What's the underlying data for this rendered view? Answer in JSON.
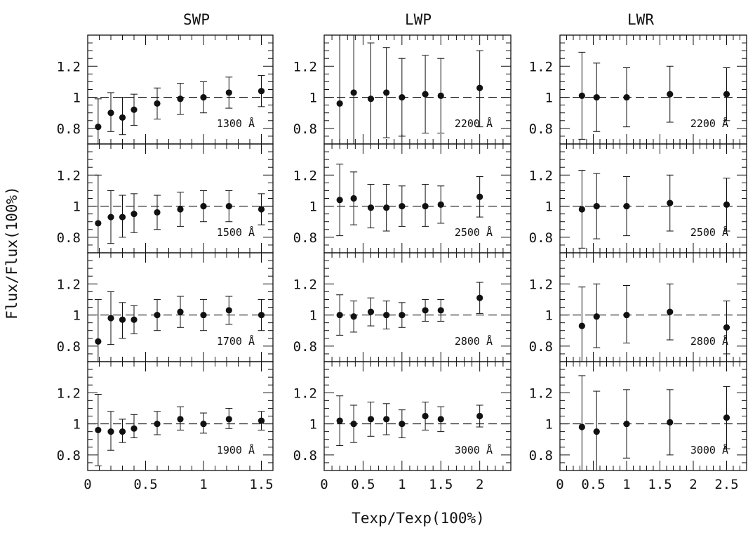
{
  "figure": {
    "column_titles": [
      "SWP",
      "LWP",
      "LWR"
    ],
    "xlabel": "Texp/Texp(100%)",
    "ylabel": "Flux/Flux(100%)"
  },
  "chart_data": [
    {
      "type": "scatter",
      "panel": "SWP 1300 Å",
      "camera": "SWP",
      "wavelength_label": "1300 Å",
      "x": [
        0.09,
        0.2,
        0.3,
        0.4,
        0.6,
        0.8,
        1.0,
        1.22,
        1.5
      ],
      "y": [
        0.81,
        0.9,
        0.87,
        0.92,
        0.96,
        0.99,
        1.0,
        1.03,
        1.04
      ],
      "err_low": [
        0.7,
        0.78,
        0.76,
        0.82,
        0.86,
        0.89,
        0.9,
        0.93,
        0.94
      ],
      "err_high": [
        0.99,
        1.03,
        1.0,
        1.02,
        1.06,
        1.09,
        1.1,
        1.13,
        1.14
      ],
      "xlim": [
        0,
        1.6
      ],
      "ylim": [
        0.7,
        1.4
      ],
      "reference_line": 1.0
    },
    {
      "type": "scatter",
      "panel": "SWP 1500 Å",
      "camera": "SWP",
      "wavelength_label": "1500 Å",
      "x": [
        0.09,
        0.2,
        0.3,
        0.4,
        0.6,
        0.8,
        1.0,
        1.22,
        1.5
      ],
      "y": [
        0.89,
        0.93,
        0.93,
        0.95,
        0.96,
        0.98,
        1.0,
        1.0,
        0.98
      ],
      "err_low": [
        0.7,
        0.76,
        0.8,
        0.83,
        0.85,
        0.87,
        0.9,
        0.9,
        0.88
      ],
      "err_high": [
        1.2,
        1.1,
        1.07,
        1.08,
        1.07,
        1.09,
        1.1,
        1.1,
        1.08
      ],
      "xlim": [
        0,
        1.6
      ],
      "ylim": [
        0.7,
        1.4
      ],
      "reference_line": 1.0
    },
    {
      "type": "scatter",
      "panel": "SWP 1700 Å",
      "camera": "SWP",
      "wavelength_label": "1700 Å",
      "x": [
        0.09,
        0.2,
        0.3,
        0.4,
        0.6,
        0.8,
        1.0,
        1.22,
        1.5
      ],
      "y": [
        0.83,
        0.98,
        0.97,
        0.97,
        1.0,
        1.02,
        1.0,
        1.03,
        1.0
      ],
      "err_low": [
        0.7,
        0.81,
        0.85,
        0.88,
        0.9,
        0.92,
        0.9,
        0.94,
        0.9
      ],
      "err_high": [
        1.1,
        1.15,
        1.08,
        1.06,
        1.1,
        1.12,
        1.1,
        1.12,
        1.1
      ],
      "xlim": [
        0,
        1.6
      ],
      "ylim": [
        0.7,
        1.4
      ],
      "reference_line": 1.0
    },
    {
      "type": "scatter",
      "panel": "SWP 1900 Å",
      "camera": "SWP",
      "wavelength_label": "1900 Å",
      "x": [
        0.09,
        0.2,
        0.3,
        0.4,
        0.6,
        0.8,
        1.0,
        1.22,
        1.5
      ],
      "y": [
        0.96,
        0.95,
        0.95,
        0.97,
        1.0,
        1.03,
        1.0,
        1.03,
        1.02
      ],
      "err_low": [
        0.73,
        0.83,
        0.88,
        0.91,
        0.93,
        0.96,
        0.94,
        0.97,
        0.96
      ],
      "err_high": [
        1.19,
        1.08,
        1.03,
        1.06,
        1.08,
        1.11,
        1.07,
        1.1,
        1.08
      ],
      "xlim": [
        0,
        1.6
      ],
      "ylim": [
        0.7,
        1.4
      ],
      "reference_line": 1.0
    },
    {
      "type": "scatter",
      "panel": "LWP 2200 Å",
      "camera": "LWP",
      "wavelength_label": "2200 Å",
      "x": [
        0.2,
        0.38,
        0.6,
        0.8,
        1.0,
        1.3,
        1.5,
        2.0
      ],
      "y": [
        0.96,
        1.03,
        0.99,
        1.03,
        1.0,
        1.02,
        1.01,
        1.06
      ],
      "err_low": [
        0.7,
        0.7,
        0.7,
        0.74,
        0.75,
        0.77,
        0.77,
        0.81
      ],
      "err_high": [
        1.4,
        1.4,
        1.35,
        1.32,
        1.25,
        1.27,
        1.25,
        1.3
      ],
      "xlim": [
        0,
        2.4
      ],
      "ylim": [
        0.7,
        1.4
      ],
      "reference_line": 1.0
    },
    {
      "type": "scatter",
      "panel": "LWP 2500 Å",
      "camera": "LWP",
      "wavelength_label": "2500 Å",
      "x": [
        0.2,
        0.38,
        0.6,
        0.8,
        1.0,
        1.3,
        1.5,
        2.0
      ],
      "y": [
        1.04,
        1.05,
        0.99,
        0.99,
        1.0,
        1.0,
        1.01,
        1.06
      ],
      "err_low": [
        0.81,
        0.88,
        0.86,
        0.84,
        0.87,
        0.87,
        0.89,
        0.93
      ],
      "err_high": [
        1.27,
        1.22,
        1.14,
        1.14,
        1.13,
        1.14,
        1.13,
        1.19
      ],
      "xlim": [
        0,
        2.4
      ],
      "ylim": [
        0.7,
        1.4
      ],
      "reference_line": 1.0
    },
    {
      "type": "scatter",
      "panel": "LWP 2800 Å",
      "camera": "LWP",
      "wavelength_label": "2800 Å",
      "x": [
        0.2,
        0.38,
        0.6,
        0.8,
        1.0,
        1.3,
        1.5,
        2.0
      ],
      "y": [
        1.0,
        0.99,
        1.02,
        1.0,
        1.0,
        1.03,
        1.03,
        1.11
      ],
      "err_low": [
        0.87,
        0.89,
        0.93,
        0.91,
        0.92,
        0.96,
        0.96,
        1.01
      ],
      "err_high": [
        1.13,
        1.09,
        1.11,
        1.09,
        1.08,
        1.1,
        1.1,
        1.21
      ],
      "xlim": [
        0,
        2.4
      ],
      "ylim": [
        0.7,
        1.4
      ],
      "reference_line": 1.0
    },
    {
      "type": "scatter",
      "panel": "LWP 3000 Å",
      "camera": "LWP",
      "wavelength_label": "3000 Å",
      "x": [
        0.2,
        0.38,
        0.6,
        0.8,
        1.0,
        1.3,
        1.5,
        2.0
      ],
      "y": [
        1.02,
        1.0,
        1.03,
        1.03,
        1.0,
        1.05,
        1.03,
        1.05
      ],
      "err_low": [
        0.86,
        0.88,
        0.92,
        0.93,
        0.91,
        0.96,
        0.95,
        0.98
      ],
      "err_high": [
        1.18,
        1.12,
        1.14,
        1.13,
        1.09,
        1.14,
        1.11,
        1.12
      ],
      "xlim": [
        0,
        2.4
      ],
      "ylim": [
        0.7,
        1.4
      ],
      "reference_line": 1.0
    },
    {
      "type": "scatter",
      "panel": "LWR 2200 Å",
      "camera": "LWR",
      "wavelength_label": "2200 Å",
      "x": [
        0.33,
        0.55,
        1.0,
        1.65,
        2.5
      ],
      "y": [
        1.01,
        1.0,
        1.0,
        1.02,
        1.02
      ],
      "err_low": [
        0.73,
        0.78,
        0.81,
        0.84,
        0.85
      ],
      "err_high": [
        1.29,
        1.22,
        1.19,
        1.2,
        1.19
      ],
      "xlim": [
        0,
        2.8
      ],
      "ylim": [
        0.7,
        1.4
      ],
      "reference_line": 1.0
    },
    {
      "type": "scatter",
      "panel": "LWR 2500 Å",
      "camera": "LWR",
      "wavelength_label": "2500 Å",
      "x": [
        0.33,
        0.55,
        1.0,
        1.65,
        2.5
      ],
      "y": [
        0.98,
        1.0,
        1.0,
        1.02,
        1.01
      ],
      "err_low": [
        0.73,
        0.79,
        0.81,
        0.84,
        0.84
      ],
      "err_high": [
        1.23,
        1.21,
        1.19,
        1.2,
        1.18
      ],
      "xlim": [
        0,
        2.8
      ],
      "ylim": [
        0.7,
        1.4
      ],
      "reference_line": 1.0
    },
    {
      "type": "scatter",
      "panel": "LWR 2800 Å",
      "camera": "LWR",
      "wavelength_label": "2800 Å",
      "x": [
        0.33,
        0.55,
        1.0,
        1.65,
        2.5
      ],
      "y": [
        0.93,
        0.99,
        1.0,
        1.02,
        0.92
      ],
      "err_low": [
        0.7,
        0.79,
        0.82,
        0.84,
        0.75
      ],
      "err_high": [
        1.18,
        1.2,
        1.19,
        1.2,
        1.09
      ],
      "xlim": [
        0,
        2.8
      ],
      "ylim": [
        0.7,
        1.4
      ],
      "reference_line": 1.0
    },
    {
      "type": "scatter",
      "panel": "LWR 3000 Å",
      "camera": "LWR",
      "wavelength_label": "3000 Å",
      "x": [
        0.33,
        0.55,
        1.0,
        1.65,
        2.5
      ],
      "y": [
        0.98,
        0.95,
        1.0,
        1.01,
        1.04
      ],
      "err_low": [
        0.7,
        0.7,
        0.78,
        0.8,
        0.84
      ],
      "err_high": [
        1.31,
        1.21,
        1.22,
        1.22,
        1.24
      ],
      "xlim": [
        0,
        2.8
      ],
      "ylim": [
        0.7,
        1.4
      ],
      "reference_line": 1.0
    }
  ],
  "axes": {
    "y_ticks": [
      {
        "value": 0.8,
        "label": "0.8"
      },
      {
        "value": 1.0,
        "label": "1"
      },
      {
        "value": 1.2,
        "label": "1.2"
      }
    ],
    "y_minor_step": 0.05,
    "x_ticks": {
      "SWP": [
        {
          "value": 0,
          "label": "0"
        },
        {
          "value": 0.5,
          "label": "0.5"
        },
        {
          "value": 1.0,
          "label": "1"
        },
        {
          "value": 1.5,
          "label": "1.5"
        }
      ],
      "LWP": [
        {
          "value": 0,
          "label": "0"
        },
        {
          "value": 0.5,
          "label": "0.5"
        },
        {
          "value": 1.0,
          "label": "1"
        },
        {
          "value": 1.5,
          "label": "1.5"
        },
        {
          "value": 2.0,
          "label": "2"
        }
      ],
      "LWR": [
        {
          "value": 0,
          "label": "0"
        },
        {
          "value": 0.5,
          "label": "0.5"
        },
        {
          "value": 1.0,
          "label": "1"
        },
        {
          "value": 1.5,
          "label": "1.5"
        },
        {
          "value": 2.0,
          "label": "2"
        },
        {
          "value": 2.5,
          "label": "2.5"
        }
      ]
    },
    "x_minor_step": 0.1
  }
}
